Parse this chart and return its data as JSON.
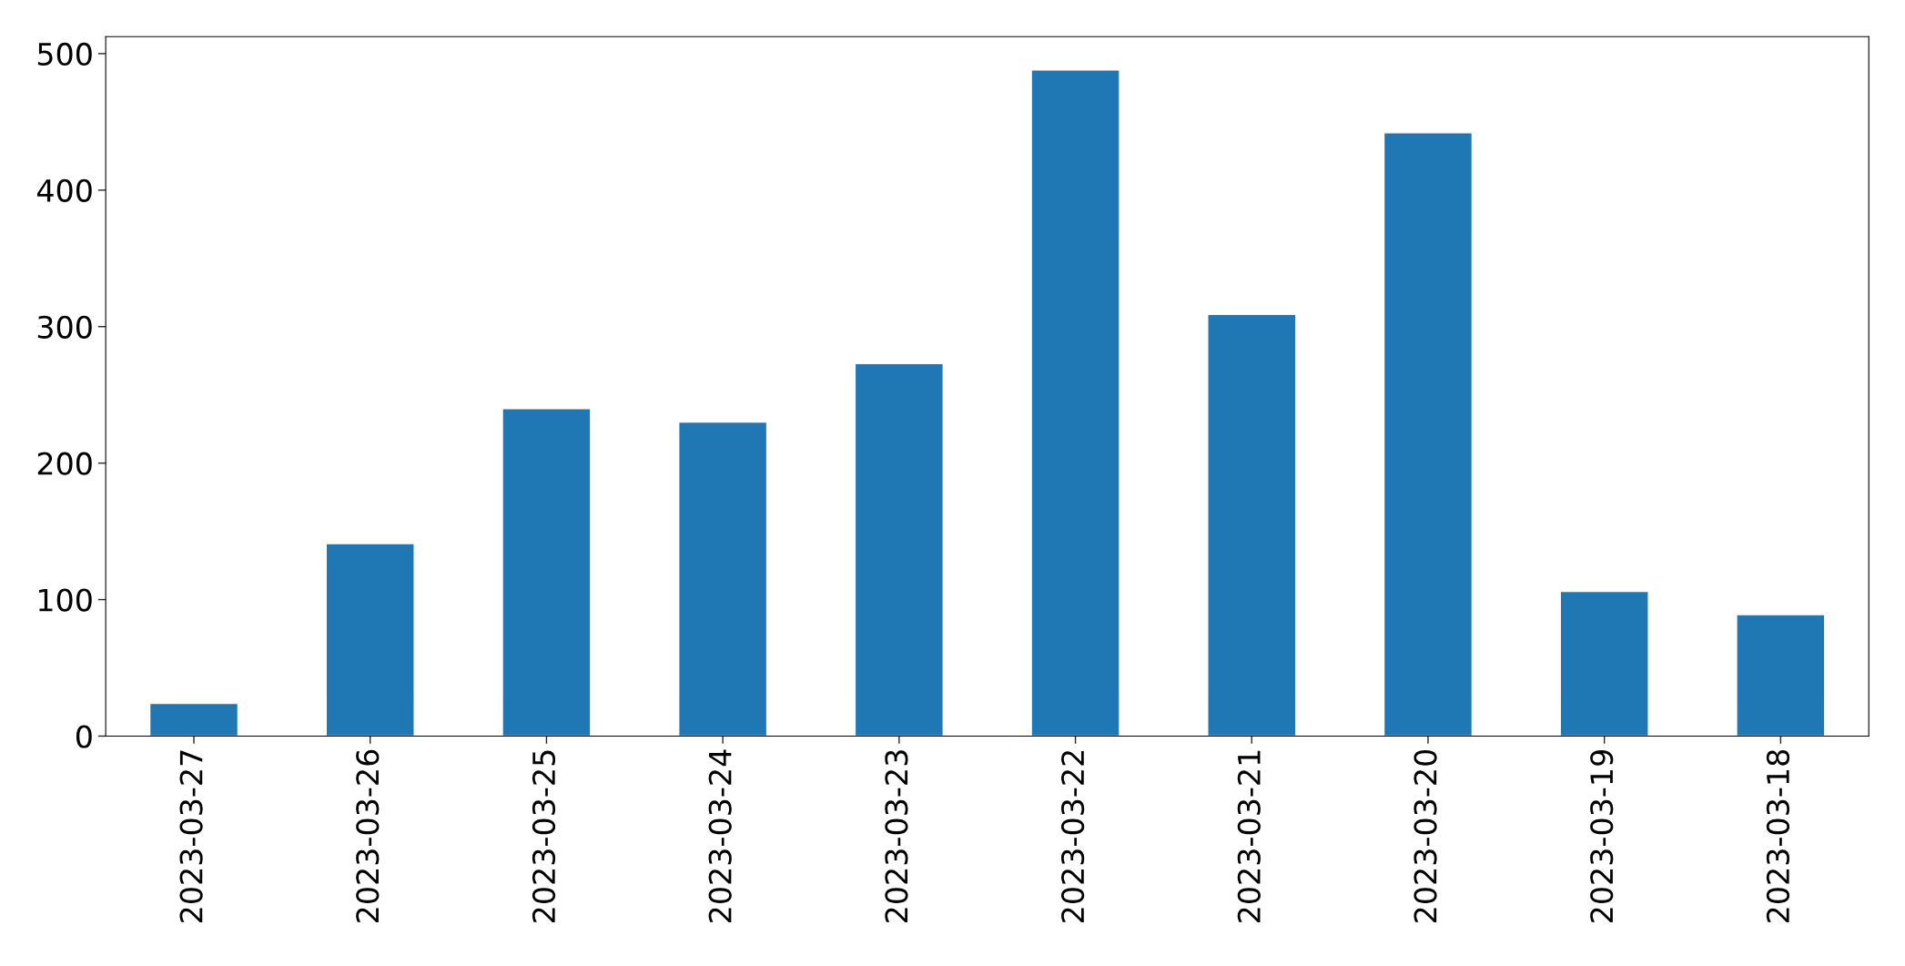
{
  "chart_data": {
    "type": "bar",
    "categories": [
      "2023-03-27",
      "2023-03-26",
      "2023-03-25",
      "2023-03-24",
      "2023-03-23",
      "2023-03-22",
      "2023-03-21",
      "2023-03-20",
      "2023-03-19",
      "2023-03-18"
    ],
    "values": [
      24,
      141,
      240,
      230,
      273,
      488,
      309,
      442,
      106,
      89
    ],
    "color": "#1f77b4",
    "ylim": [
      0,
      512.4
    ],
    "yticks": [
      0,
      100,
      200,
      300,
      400,
      500
    ],
    "grid": false
  }
}
